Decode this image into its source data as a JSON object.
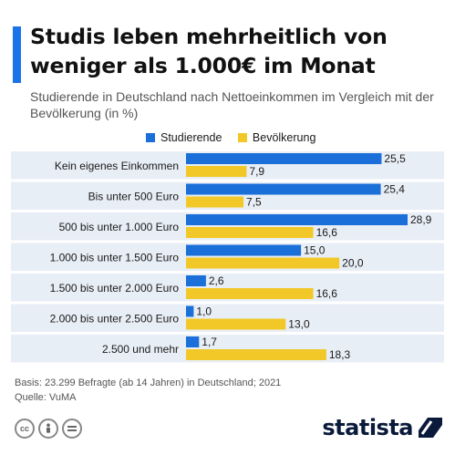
{
  "header": {
    "title": "Studis leben mehrheitlich von weniger als 1.000€ im Monat",
    "subtitle": "Studierende in Deutschland nach Nettoeinkommen im Vergleich mit der Bevölkerung (in %)"
  },
  "colors": {
    "accent": "#1a73e8",
    "students": "#1a6fd8",
    "population": "#f2c828",
    "band": "#e8eef6"
  },
  "chart_data": {
    "type": "bar",
    "orientation": "horizontal",
    "categories": [
      "Kein eigenes Einkommen",
      "Bis unter 500 Euro",
      "500 bis unter 1.000 Euro",
      "1.000 bis unter 1.500 Euro",
      "1.500 bis unter 2.000 Euro",
      "2.000 bis unter 2.500 Euro",
      "2.500 und mehr"
    ],
    "series": [
      {
        "name": "Studierende",
        "values": [
          25.5,
          25.4,
          28.9,
          15.0,
          2.6,
          1.0,
          1.7
        ],
        "labels": [
          "25,5",
          "25,4",
          "28,9",
          "15,0",
          "2,6",
          "1,0",
          "1,7"
        ],
        "color": "#1a6fd8"
      },
      {
        "name": "Bevölkerung",
        "values": [
          7.9,
          7.5,
          16.6,
          20.0,
          16.6,
          13.0,
          18.3
        ],
        "labels": [
          "7,9",
          "7,5",
          "16,6",
          "20,0",
          "16,6",
          "13,0",
          "18,3"
        ],
        "color": "#f2c828"
      }
    ],
    "xlim": [
      0,
      28.9
    ],
    "legend": "top",
    "grid": false
  },
  "footer": {
    "basis": "Basis: 23.299 Befragte (ab 14 Jahren) in Deutschland; 2021",
    "source": "Quelle: VuMA",
    "license_icons": [
      "cc-icon",
      "person-icon",
      "equals-icon"
    ],
    "brand": "statista"
  }
}
